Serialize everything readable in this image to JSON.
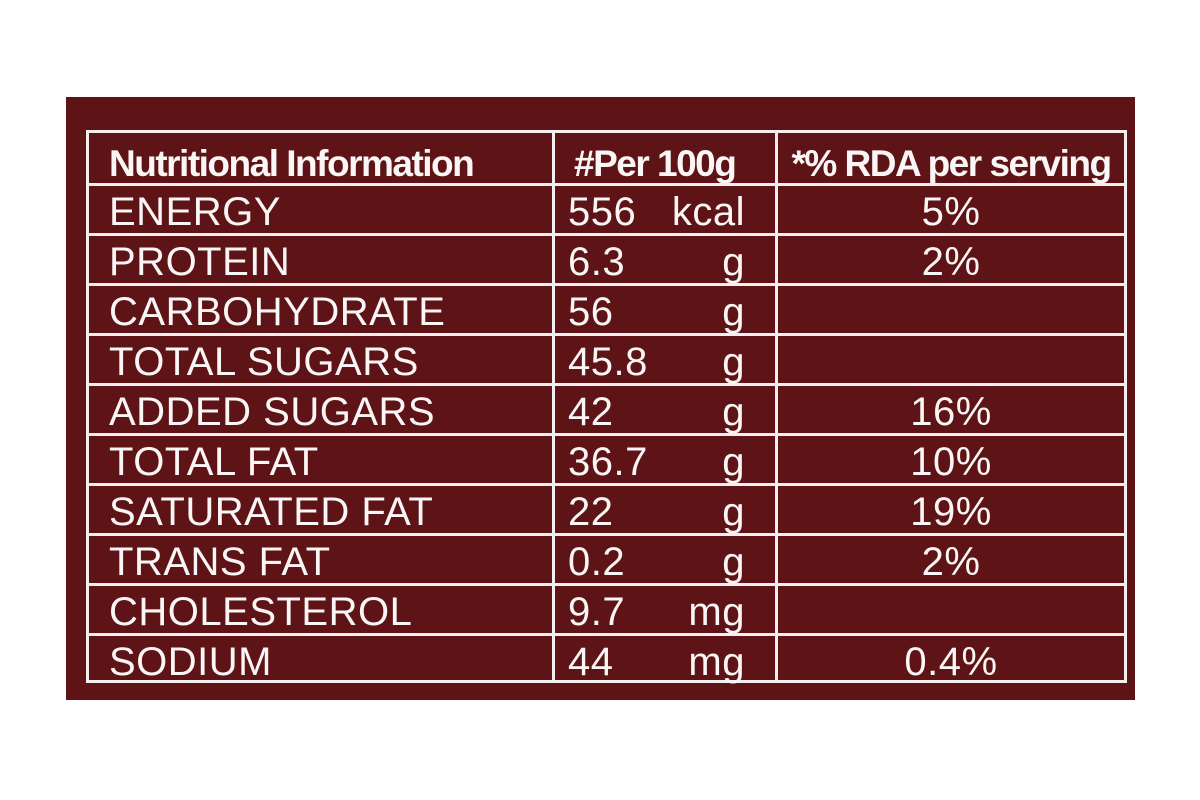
{
  "table": {
    "header": [
      "Nutritional Information",
      "#Per 100g",
      "*% RDA per serving"
    ],
    "rows": [
      {
        "name": "ENERGY",
        "amount": "556",
        "unit": "kcal",
        "rda": "5%"
      },
      {
        "name": "PROTEIN",
        "amount": "6.3",
        "unit": "g",
        "rda": "2%"
      },
      {
        "name": "CARBOHYDRATE",
        "amount": "56",
        "unit": "g"
      },
      {
        "name": "TOTAL SUGARS",
        "amount": "45.8",
        "unit": "g"
      },
      {
        "name": "ADDED SUGARS",
        "amount": "42",
        "unit": "g",
        "rda": "16%"
      },
      {
        "name": "TOTAL FAT",
        "amount": "36.7",
        "unit": "g",
        "rda": "10%"
      },
      {
        "name": "SATURATED FAT",
        "amount": "22",
        "unit": "g",
        "rda": "19%"
      },
      {
        "name": "TRANS FAT",
        "amount": "0.2",
        "unit": "g",
        "rda": "2%"
      },
      {
        "name": "CHOLESTEROL",
        "amount": "9.7",
        "unit": "mg"
      },
      {
        "name": "SODIUM",
        "amount": "44",
        "unit": "mg",
        "rda": "0.4%"
      }
    ]
  }
}
